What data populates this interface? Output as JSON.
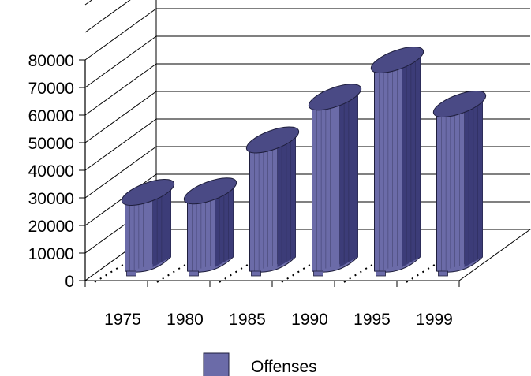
{
  "chart_data": {
    "type": "bar",
    "categories": [
      "1975",
      "1980",
      "1985",
      "1990",
      "1995",
      "1999"
    ],
    "series": [
      {
        "name": "Offenses",
        "values": [
          26000,
          26500,
          45000,
          60500,
          74000,
          58000
        ]
      }
    ],
    "ylim": [
      0,
      80000
    ],
    "yticks": [
      "0",
      "10000",
      "20000",
      "30000",
      "40000",
      "50000",
      "60000",
      "70000",
      "80000"
    ],
    "grid": true,
    "style": "3d-cylinder",
    "legend": "bottom",
    "colors": {
      "front": "#6b6ba8",
      "side": "#3c3c78",
      "top": "#4a4a85",
      "stroke": "#1e1e3c"
    }
  }
}
